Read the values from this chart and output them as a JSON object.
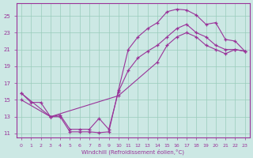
{
  "bg_color": "#cce8e4",
  "line_color": "#993399",
  "grid_color": "#99ccbb",
  "xlim": [
    -0.5,
    23.5
  ],
  "ylim": [
    10.5,
    26.5
  ],
  "xticks": [
    0,
    1,
    2,
    3,
    4,
    5,
    6,
    7,
    8,
    9,
    10,
    11,
    12,
    13,
    14,
    15,
    16,
    17,
    18,
    19,
    20,
    21,
    22,
    23
  ],
  "yticks": [
    11,
    13,
    15,
    17,
    19,
    21,
    23,
    25
  ],
  "xlabel": "Windchill (Refroidissement éolien,°C)",
  "line1_x": [
    0,
    1,
    2,
    3,
    4,
    5,
    6,
    7,
    8,
    9,
    10,
    11,
    12,
    13,
    14,
    15,
    16,
    17,
    18,
    19,
    20,
    21,
    22,
    23
  ],
  "line1_y": [
    15.8,
    14.7,
    14.7,
    13.0,
    13.0,
    11.2,
    11.2,
    11.2,
    11.1,
    11.2,
    16.2,
    21.0,
    22.5,
    23.5,
    24.2,
    25.5,
    25.8,
    25.7,
    25.1,
    24.0,
    24.2,
    22.2,
    22.0,
    20.8
  ],
  "line2_x": [
    0,
    3,
    4,
    5,
    6,
    7,
    8,
    9,
    10,
    11,
    12,
    13,
    14,
    15,
    16,
    17,
    18,
    19,
    20,
    21,
    22,
    23
  ],
  "line2_y": [
    15.0,
    13.0,
    13.2,
    11.5,
    11.5,
    11.5,
    12.8,
    11.5,
    16.0,
    18.5,
    20.0,
    20.8,
    21.5,
    22.5,
    23.5,
    24.0,
    23.0,
    22.5,
    21.5,
    21.0,
    21.0,
    20.8
  ],
  "line3_x": [
    0,
    3,
    10,
    14,
    15,
    16,
    17,
    18,
    19,
    20,
    21,
    22,
    23
  ],
  "line3_y": [
    15.8,
    13.0,
    15.5,
    19.5,
    21.5,
    22.5,
    23.0,
    22.5,
    21.5,
    21.0,
    20.5,
    21.0,
    20.8
  ]
}
